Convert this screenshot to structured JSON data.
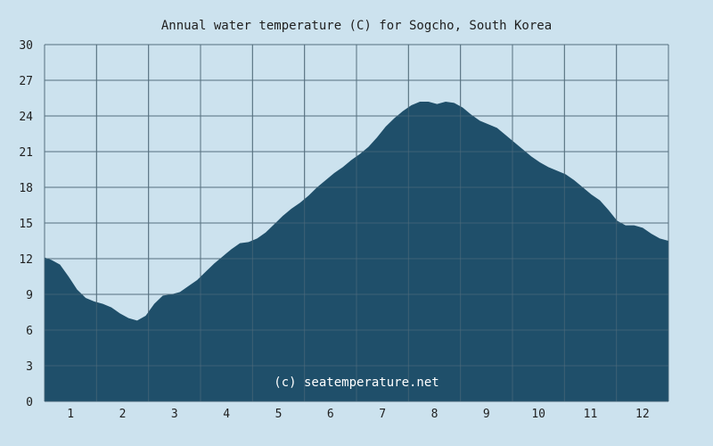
{
  "chart_data": {
    "type": "area",
    "title": "Annual water temperature (C) for Sogcho, South Korea",
    "xlabel": "",
    "ylabel": "",
    "x_tick_labels": [
      "1",
      "2",
      "3",
      "4",
      "5",
      "6",
      "7",
      "8",
      "9",
      "10",
      "11",
      "12"
    ],
    "y_ticks": [
      0,
      3,
      6,
      9,
      12,
      15,
      18,
      21,
      24,
      27,
      30
    ],
    "ylim": [
      0,
      30
    ],
    "xlim": [
      1,
      365
    ],
    "grid": true,
    "watermark": "(c) seatemperature.net",
    "colors": {
      "background": "#cce2ee",
      "fill": "#1f4f6a",
      "grid": "#55707e"
    },
    "x": [
      1,
      5,
      10,
      15,
      20,
      25,
      30,
      35,
      40,
      45,
      50,
      55,
      60,
      65,
      70,
      75,
      80,
      85,
      90,
      95,
      100,
      105,
      110,
      115,
      120,
      125,
      130,
      135,
      140,
      145,
      150,
      155,
      160,
      165,
      170,
      175,
      180,
      185,
      190,
      195,
      200,
      205,
      210,
      215,
      220,
      225,
      230,
      235,
      240,
      245,
      250,
      255,
      260,
      265,
      270,
      275,
      280,
      285,
      290,
      295,
      300,
      305,
      310,
      315,
      320,
      325,
      330,
      335,
      340,
      345,
      350,
      355,
      360,
      365
    ],
    "y": [
      12.1,
      11.9,
      11.5,
      10.5,
      9.4,
      8.7,
      8.4,
      8.2,
      7.9,
      7.4,
      7.0,
      6.8,
      7.2,
      8.2,
      8.9,
      9.0,
      9.2,
      9.7,
      10.2,
      10.9,
      11.6,
      12.2,
      12.8,
      13.3,
      13.4,
      13.7,
      14.2,
      14.9,
      15.6,
      16.2,
      16.7,
      17.3,
      18.0,
      18.6,
      19.2,
      19.7,
      20.3,
      20.8,
      21.4,
      22.2,
      23.1,
      23.8,
      24.4,
      24.9,
      25.2,
      25.2,
      25.0,
      25.2,
      25.1,
      24.7,
      24.1,
      23.6,
      23.3,
      23.0,
      22.4,
      21.8,
      21.2,
      20.6,
      20.1,
      19.7,
      19.4,
      19.1,
      18.6,
      18.0,
      17.4,
      16.9,
      16.1,
      15.2,
      14.8,
      14.8,
      14.6,
      14.1,
      13.7,
      13.5
    ]
  }
}
